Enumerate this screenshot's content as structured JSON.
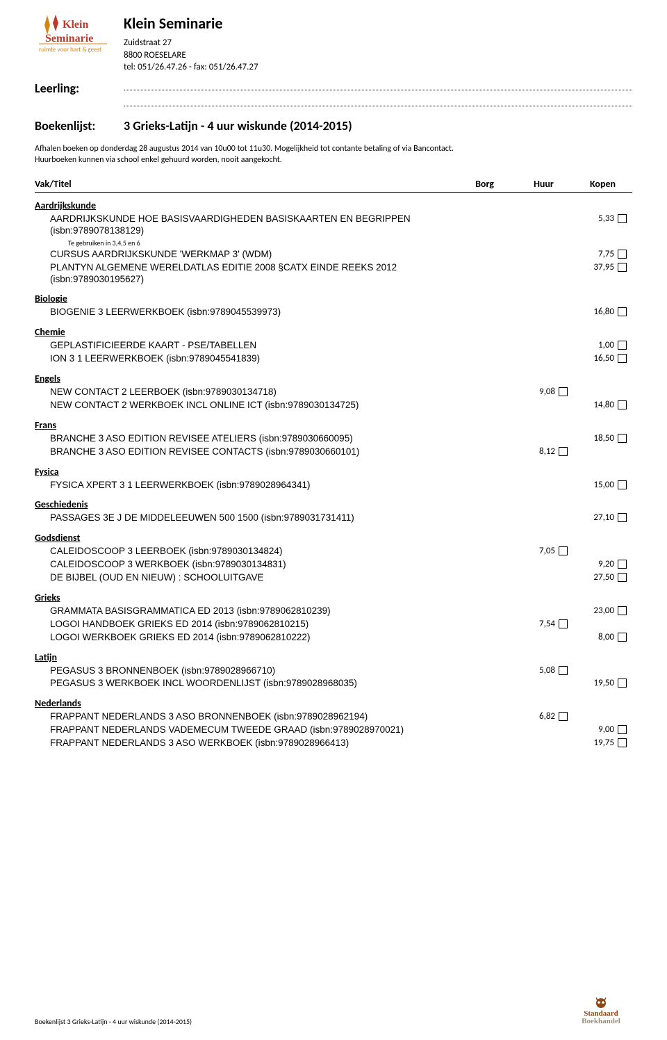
{
  "school": {
    "name": "Klein Seminarie",
    "addr1": "Zuidstraat 27",
    "addr2": "8800 ROESELARE",
    "tel": "tel: 051/26.47.26 - fax: 051/26.47.27",
    "logo_tagline": "ruimte voor hart & geest"
  },
  "labels": {
    "leerling": "Leerling:",
    "boekenlijst": "Boekenlijst:",
    "list_title": "3 Grieks-Latijn - 4 uur wiskunde (2014-2015)"
  },
  "notes": {
    "line1": "Afhalen boeken op donderdag 28 augustus 2014 van 10u00 tot 11u30. Mogelijkheid tot contante betaling of via Bancontact.",
    "line2": "Huurboeken kunnen via school enkel gehuurd worden, nooit aangekocht."
  },
  "headers": {
    "vak": "Vak/Titel",
    "borg": "Borg",
    "huur": "Huur",
    "kopen": "Kopen"
  },
  "subjects": [
    {
      "name": "Aardrijkskunde",
      "items": [
        {
          "title": "AARDRIJKSKUNDE HOE BASISVAARDIGHEDEN BASISKAARTEN EN BEGRIPPEN (isbn:9789078138129)",
          "kopen": "5,33",
          "note": "Te gebruiken in 3,4,5 en 6"
        },
        {
          "title": "CURSUS AARDRIJKSKUNDE 'WERKMAP 3' (WDM)",
          "kopen": "7,75"
        },
        {
          "title": "PLANTYN ALGEMENE WERELDATLAS EDITIE 2008 §CATX EINDE REEKS 2012 (isbn:9789030195627)",
          "kopen": "37,95"
        }
      ]
    },
    {
      "name": "Biologie",
      "items": [
        {
          "title": "BIOGENIE 3 LEERWERKBOEK (isbn:9789045539973)",
          "kopen": "16,80"
        }
      ]
    },
    {
      "name": "Chemie",
      "items": [
        {
          "title": "GEPLASTIFICIEERDE KAART - PSE/TABELLEN",
          "kopen": "1,00"
        },
        {
          "title": "ION 3 1 LEERWERKBOEK (isbn:9789045541839)",
          "kopen": "16,50"
        }
      ]
    },
    {
      "name": "Engels",
      "items": [
        {
          "title": "NEW CONTACT 2 LEERBOEK (isbn:9789030134718)",
          "huur": "9,08"
        },
        {
          "title": "NEW CONTACT 2 WERKBOEK INCL ONLINE ICT (isbn:9789030134725)",
          "kopen": "14,80"
        }
      ]
    },
    {
      "name": "Frans",
      "items": [
        {
          "title": "BRANCHE 3 ASO EDITION REVISEE ATELIERS (isbn:9789030660095)",
          "kopen": "18,50"
        },
        {
          "title": "BRANCHE 3 ASO EDITION REVISEE CONTACTS (isbn:9789030660101)",
          "huur": "8,12"
        }
      ]
    },
    {
      "name": "Fysica",
      "items": [
        {
          "title": "FYSICA XPERT 3 1 LEERWERKBOEK (isbn:9789028964341)",
          "kopen": "15,00"
        }
      ]
    },
    {
      "name": "Geschiedenis",
      "items": [
        {
          "title": "PASSAGES 3E J DE MIDDELEEUWEN 500 1500 (isbn:9789031731411)",
          "kopen": "27,10"
        }
      ]
    },
    {
      "name": "Godsdienst",
      "items": [
        {
          "title": "CALEIDOSCOOP 3 LEERBOEK (isbn:9789030134824)",
          "huur": "7,05"
        },
        {
          "title": "CALEIDOSCOOP 3 WERKBOEK (isbn:9789030134831)",
          "kopen": "9,20"
        },
        {
          "title": "DE BIJBEL (OUD EN NIEUW) : SCHOOLUITGAVE",
          "kopen": "27,50"
        }
      ]
    },
    {
      "name": "Grieks",
      "items": [
        {
          "title": "GRAMMATA BASISGRAMMATICA ED 2013 (isbn:9789062810239)",
          "kopen": "23,00"
        },
        {
          "title": "LOGOI HANDBOEK GRIEKS ED 2014 (isbn:9789062810215)",
          "huur": "7,54"
        },
        {
          "title": "LOGOI WERKBOEK GRIEKS ED 2014 (isbn:9789062810222)",
          "kopen": "8,00"
        }
      ]
    },
    {
      "name": "Latijn",
      "items": [
        {
          "title": "PEGASUS 3 BRONNENBOEK (isbn:9789028966710)",
          "huur": "5,08"
        },
        {
          "title": "PEGASUS 3 WERKBOEK INCL WOORDENLIJST (isbn:9789028968035)",
          "kopen": "19,50"
        }
      ]
    },
    {
      "name": "Nederlands",
      "items": [
        {
          "title": "FRAPPANT NEDERLANDS 3 ASO BRONNENBOEK (isbn:9789028962194)",
          "huur": "6,82"
        },
        {
          "title": "FRAPPANT NEDERLANDS VADEMECUM TWEEDE GRAAD (isbn:9789028970021)",
          "kopen": "9,00"
        },
        {
          "title": "FRAPPANT NEDERLANDS 3 ASO WERKBOEK (isbn:9789028966413)",
          "kopen": "19,75"
        }
      ]
    }
  ],
  "footer": {
    "text": "Boekenlijst 3 Grieks-Latijn - 4 uur wiskunde (2014-2015)",
    "brand1": "Standaard",
    "brand2": "Boekhandel"
  },
  "colors": {
    "logo_orange": "#d88410",
    "logo_red": "#c03a2a",
    "text": "#000000",
    "sb_brown": "#8a4a1a",
    "sb_grey": "#9a8f7a"
  }
}
